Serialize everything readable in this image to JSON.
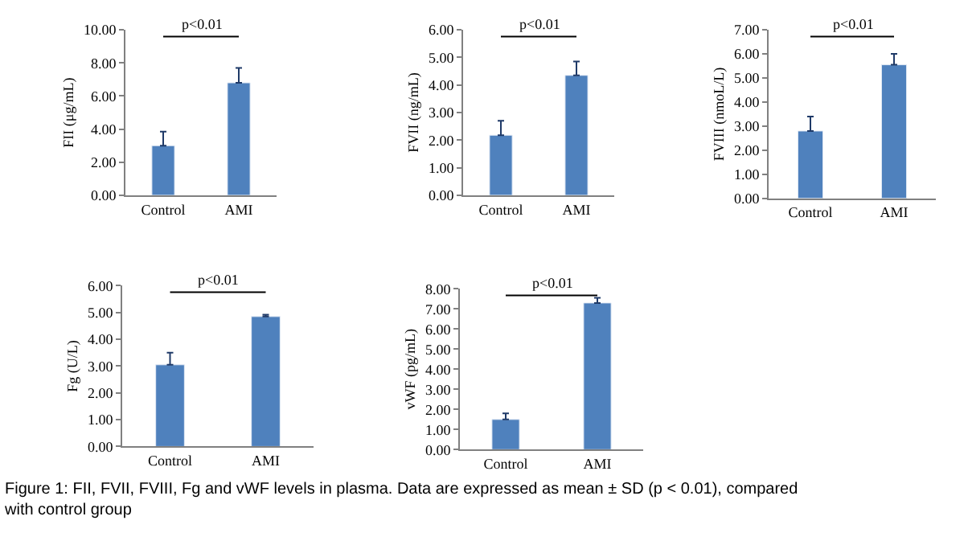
{
  "chart_data": [
    {
      "type": "bar",
      "ylabel": "FII (μg/mL)",
      "categories": [
        "Control",
        "AMI"
      ],
      "values": [
        3.0,
        6.8
      ],
      "errors": [
        [
          3.0,
          3.85
        ],
        [
          6.8,
          7.7
        ]
      ],
      "color": "#4f81bd",
      "ylim": [
        0,
        10
      ],
      "yticks": [
        {
          "value": 0,
          "label": "0.00"
        },
        {
          "value": 2,
          "label": "2.00"
        },
        {
          "value": 4,
          "label": "4.00"
        },
        {
          "value": 6,
          "label": "6.00"
        },
        {
          "value": 8,
          "label": "8.00"
        },
        {
          "value": 10,
          "label": "10.00"
        }
      ],
      "annotations": [
        "p<0.01"
      ]
    },
    {
      "type": "bar",
      "ylabel": "FVII (ng/mL)",
      "categories": [
        "Control",
        "AMI"
      ],
      "values": [
        2.18,
        4.35
      ],
      "errors": [
        [
          2.18,
          2.7
        ],
        [
          4.35,
          4.85
        ]
      ],
      "color": "#4f81bd",
      "ylim": [
        0,
        6
      ],
      "yticks": [
        {
          "value": 0,
          "label": "0.00"
        },
        {
          "value": 1,
          "label": "1.00"
        },
        {
          "value": 2,
          "label": "2.00"
        },
        {
          "value": 3,
          "label": "3.00"
        },
        {
          "value": 4,
          "label": "4.00"
        },
        {
          "value": 5,
          "label": "5.00"
        },
        {
          "value": 6,
          "label": "6.00"
        }
      ],
      "annotations": [
        "p<0.01"
      ]
    },
    {
      "type": "bar",
      "ylabel": "FVIII (nmoL/L)",
      "categories": [
        "Control",
        "AMI"
      ],
      "values": [
        2.8,
        5.55
      ],
      "errors": [
        [
          2.8,
          3.4
        ],
        [
          5.55,
          6.0
        ]
      ],
      "color": "#4f81bd",
      "ylim": [
        0,
        7
      ],
      "yticks": [
        {
          "value": 0,
          "label": "0.00"
        },
        {
          "value": 1,
          "label": "1.00"
        },
        {
          "value": 2,
          "label": "2.00"
        },
        {
          "value": 3,
          "label": "3.00"
        },
        {
          "value": 4,
          "label": "4.00"
        },
        {
          "value": 5,
          "label": "5.00"
        },
        {
          "value": 6,
          "label": "6.00"
        },
        {
          "value": 7,
          "label": "7.00"
        }
      ],
      "annotations": [
        "p<0.01"
      ]
    },
    {
      "type": "bar",
      "ylabel": "Fg (U/L)",
      "categories": [
        "Control",
        "AMI"
      ],
      "values": [
        3.05,
        4.85
      ],
      "errors": [
        [
          3.05,
          3.5
        ],
        [
          4.85,
          4.92
        ]
      ],
      "color": "#4f81bd",
      "ylim": [
        0,
        6
      ],
      "yticks": [
        {
          "value": 0,
          "label": "0.00"
        },
        {
          "value": 1,
          "label": "1.00"
        },
        {
          "value": 2,
          "label": "2.00"
        },
        {
          "value": 3,
          "label": "3.00"
        },
        {
          "value": 4,
          "label": "4.00"
        },
        {
          "value": 5,
          "label": "5.00"
        },
        {
          "value": 6,
          "label": "6.00"
        }
      ],
      "annotations": [
        "p<0.01"
      ]
    },
    {
      "type": "bar",
      "ylabel": "vWF (pg/mL)",
      "categories": [
        "Control",
        "AMI"
      ],
      "values": [
        1.5,
        7.3
      ],
      "errors": [
        [
          1.5,
          1.8
        ],
        [
          7.3,
          7.55
        ]
      ],
      "color": "#4f81bd",
      "ylim": [
        0,
        8
      ],
      "yticks": [
        {
          "value": 0,
          "label": "0.00"
        },
        {
          "value": 1,
          "label": "1.00"
        },
        {
          "value": 2,
          "label": "2.00"
        },
        {
          "value": 3,
          "label": "3.00"
        },
        {
          "value": 4,
          "label": "4.00"
        },
        {
          "value": 5,
          "label": "5.00"
        },
        {
          "value": 6,
          "label": "6.00"
        },
        {
          "value": 7,
          "label": "7.00"
        },
        {
          "value": 8,
          "label": "8.00"
        }
      ],
      "annotations": [
        "p<0.01",
        "Figure 1: FII, FVII, FVIII, Fg and vWF levels in plasma. Data are expressed as mean ± SD (p < 0.01), compared with control group"
      ]
    }
  ]
}
